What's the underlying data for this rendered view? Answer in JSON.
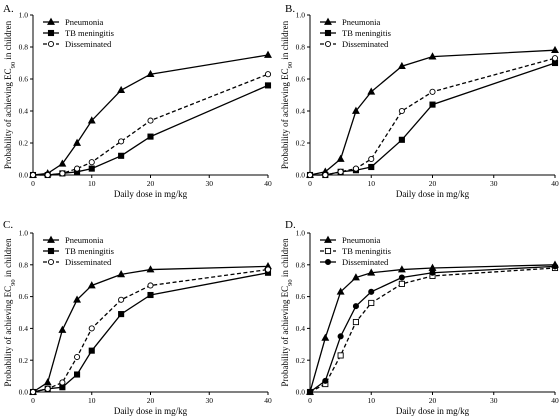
{
  "chart_data": [
    {
      "type": "line",
      "panel": "A.",
      "xlabel": "Daily dose in mg/kg",
      "ylabel": "Probability of achieving EC90 in children",
      "xlim": [
        0,
        40
      ],
      "ylim": [
        0,
        1.0
      ],
      "x_ticks": [
        "0",
        "10",
        "20",
        "30",
        "40"
      ],
      "y_ticks": [
        "0.0",
        "0.2",
        "0.4",
        "0.6",
        "0.8",
        "1.0"
      ],
      "legend_position": "top-left",
      "series": [
        {
          "name": "Pneumonia",
          "marker": "triangle",
          "dash": "solid",
          "fill": "filled",
          "x": [
            0,
            2.5,
            5,
            7.5,
            10,
            15,
            20,
            40
          ],
          "y": [
            0,
            0.01,
            0.07,
            0.2,
            0.34,
            0.53,
            0.63,
            0.75
          ]
        },
        {
          "name": "TB meningitis",
          "marker": "square",
          "dash": "solid",
          "fill": "filled",
          "x": [
            0,
            2.5,
            5,
            7.5,
            10,
            15,
            20,
            40
          ],
          "y": [
            0,
            0,
            0.01,
            0.02,
            0.04,
            0.12,
            0.24,
            0.56
          ]
        },
        {
          "name": "Disseminated",
          "marker": "circle",
          "dash": "dashed",
          "fill": "open",
          "x": [
            0,
            2.5,
            5,
            7.5,
            10,
            15,
            20,
            40
          ],
          "y": [
            0,
            0,
            0.01,
            0.04,
            0.08,
            0.21,
            0.34,
            0.63
          ]
        }
      ]
    },
    {
      "type": "line",
      "panel": "B.",
      "xlabel": "Daily dose in mg/kg",
      "ylabel": "Probability of achieving EC90 in children",
      "xlim": [
        0,
        40
      ],
      "ylim": [
        0,
        1.0
      ],
      "x_ticks": [
        "0",
        "10",
        "20",
        "30",
        "40"
      ],
      "y_ticks": [
        "0.0",
        "0.2",
        "0.4",
        "0.6",
        "0.8",
        "1.0"
      ],
      "legend_position": "top-left",
      "series": [
        {
          "name": "Pneumonia",
          "marker": "triangle",
          "dash": "solid",
          "fill": "filled",
          "x": [
            0,
            2.5,
            5,
            7.5,
            10,
            15,
            20,
            40
          ],
          "y": [
            0,
            0.02,
            0.1,
            0.4,
            0.52,
            0.68,
            0.74,
            0.78
          ]
        },
        {
          "name": "TB meningitis",
          "marker": "square",
          "dash": "solid",
          "fill": "filled",
          "x": [
            0,
            2.5,
            5,
            7.5,
            10,
            15,
            20,
            40
          ],
          "y": [
            0,
            0,
            0.02,
            0.03,
            0.05,
            0.22,
            0.44,
            0.7
          ]
        },
        {
          "name": "Disseminated",
          "marker": "circle",
          "dash": "dashed",
          "fill": "open",
          "x": [
            0,
            2.5,
            5,
            7.5,
            10,
            15,
            20,
            40
          ],
          "y": [
            0,
            0,
            0.02,
            0.04,
            0.1,
            0.4,
            0.52,
            0.73
          ]
        }
      ]
    },
    {
      "type": "line",
      "panel": "C.",
      "xlabel": "Daily dose in mg/kg",
      "ylabel": "Probability of achieving EC90 in children",
      "xlim": [
        0,
        40
      ],
      "ylim": [
        0,
        1.0
      ],
      "x_ticks": [
        "0",
        "10",
        "20",
        "30",
        "40"
      ],
      "y_ticks": [
        "0.0",
        "0.2",
        "0.4",
        "0.6",
        "0.8",
        "1.0"
      ],
      "legend_position": "top-left",
      "series": [
        {
          "name": "Pneumonia",
          "marker": "triangle",
          "dash": "solid",
          "fill": "filled",
          "x": [
            0,
            2.5,
            5,
            7.5,
            10,
            15,
            20,
            40
          ],
          "y": [
            0,
            0.06,
            0.39,
            0.58,
            0.67,
            0.74,
            0.77,
            0.79
          ]
        },
        {
          "name": "TB meningitis",
          "marker": "square",
          "dash": "solid",
          "fill": "filled",
          "x": [
            0,
            2.5,
            5,
            7.5,
            10,
            15,
            20,
            40
          ],
          "y": [
            0,
            0.02,
            0.03,
            0.11,
            0.26,
            0.49,
            0.61,
            0.75
          ]
        },
        {
          "name": "Disseminated",
          "marker": "circle",
          "dash": "dashed",
          "fill": "open",
          "x": [
            0,
            2.5,
            5,
            7.5,
            10,
            15,
            20,
            40
          ],
          "y": [
            0,
            0.02,
            0.06,
            0.22,
            0.4,
            0.58,
            0.67,
            0.77
          ]
        }
      ]
    },
    {
      "type": "line",
      "panel": "D.",
      "xlabel": "Daily dose in mg/kg",
      "ylabel": "Probability of achieving EC90 in children",
      "xlim": [
        0,
        40
      ],
      "ylim": [
        0,
        1.0
      ],
      "x_ticks": [
        "0",
        "10",
        "20",
        "30",
        "40"
      ],
      "y_ticks": [
        "0.0",
        "0.2",
        "0.4",
        "0.6",
        "0.8",
        "1.0"
      ],
      "legend_position": "top-left",
      "series": [
        {
          "name": "Pneumonia",
          "marker": "triangle",
          "dash": "solid",
          "fill": "filled",
          "x": [
            0,
            2.5,
            5,
            7.5,
            10,
            15,
            20,
            40
          ],
          "y": [
            0,
            0.34,
            0.63,
            0.72,
            0.75,
            0.77,
            0.78,
            0.8
          ]
        },
        {
          "name": "TB meningitis",
          "marker": "square",
          "dash": "dashed",
          "fill": "open",
          "x": [
            0,
            2.5,
            5,
            7.5,
            10,
            15,
            20,
            40
          ],
          "y": [
            0,
            0.05,
            0.23,
            0.44,
            0.56,
            0.68,
            0.73,
            0.78
          ]
        },
        {
          "name": "Disseminated",
          "marker": "circle",
          "dash": "solid",
          "fill": "filled",
          "x": [
            0,
            2.5,
            5,
            7.5,
            10,
            15,
            20,
            40
          ],
          "y": [
            0,
            0.07,
            0.35,
            0.54,
            0.63,
            0.72,
            0.75,
            0.79
          ]
        }
      ]
    }
  ]
}
